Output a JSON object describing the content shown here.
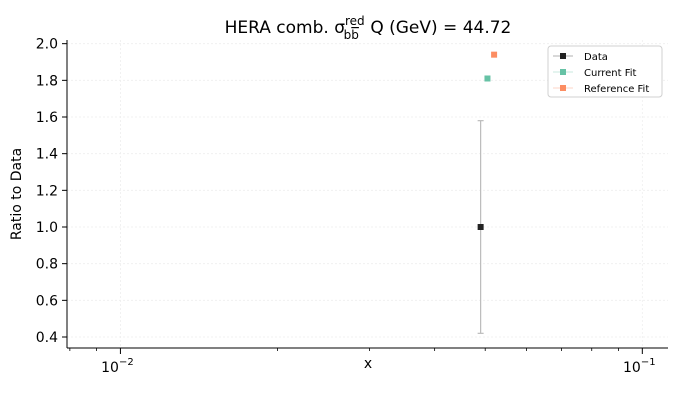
{
  "chart_data": {
    "type": "scatter",
    "title": {
      "prefix": "HERA comb. σ",
      "sup": "red",
      "sub": "b",
      "sub_bar": "b",
      "suffix": " Q (GeV) = 44.72"
    },
    "xlabel": "x",
    "ylabel": "Ratio to Data",
    "xscale": "log",
    "xlim": [
      0.0079,
      0.112
    ],
    "ylim": [
      0.34,
      2.02
    ],
    "xticks": [
      {
        "value": 0.01,
        "base": "10",
        "exp": "−2"
      },
      {
        "value": 0.1,
        "base": "10",
        "exp": "−1"
      }
    ],
    "yticks": [
      {
        "value": 0.4,
        "label": "0.4"
      },
      {
        "value": 0.6,
        "label": "0.6"
      },
      {
        "value": 0.8,
        "label": "0.8"
      },
      {
        "value": 1.0,
        "label": "1.0"
      },
      {
        "value": 1.2,
        "label": "1.2"
      },
      {
        "value": 1.4,
        "label": "1.4"
      },
      {
        "value": 1.6,
        "label": "1.6"
      },
      {
        "value": 1.8,
        "label": "1.8"
      },
      {
        "value": 2.0,
        "label": "2.0"
      }
    ],
    "grid": true,
    "legend_position": "top-right",
    "series": [
      {
        "name": "Data",
        "color": "#222222",
        "x": [
          0.049
        ],
        "y": [
          1.0
        ],
        "yerr_low": [
          0.42
        ],
        "yerr_high": [
          1.58
        ]
      },
      {
        "name": "Current Fit",
        "color": "#66c2a5",
        "x": [
          0.0505
        ],
        "y": [
          1.81
        ]
      },
      {
        "name": "Reference Fit",
        "color": "#fc8d62",
        "x": [
          0.052
        ],
        "y": [
          1.94
        ]
      }
    ]
  }
}
